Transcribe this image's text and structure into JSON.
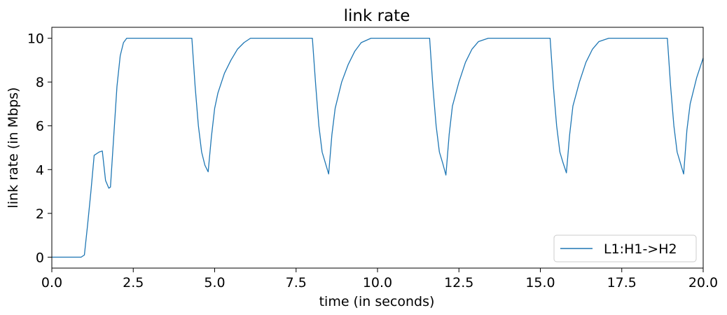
{
  "chart_data": {
    "type": "line",
    "title": "link rate",
    "xlabel": "time (in seconds)",
    "ylabel": "link rate (in Mbps)",
    "xlim": [
      0,
      20
    ],
    "ylim": [
      -0.5,
      10.5
    ],
    "xticks": [
      0.0,
      2.5,
      5.0,
      7.5,
      10.0,
      12.5,
      15.0,
      17.5,
      20.0
    ],
    "xtick_labels": [
      "0.0",
      "2.5",
      "5.0",
      "7.5",
      "10.0",
      "12.5",
      "15.0",
      "17.5",
      "20.0"
    ],
    "yticks": [
      0,
      2,
      4,
      6,
      8,
      10
    ],
    "ytick_labels": [
      "0",
      "2",
      "4",
      "6",
      "8",
      "10"
    ],
    "grid": false,
    "legend_position": "bottom-right",
    "color": "#1f77b4",
    "series": [
      {
        "name": "L1:H1->H2",
        "x": [
          0,
          0.9,
          1.0,
          1.1,
          1.2,
          1.3,
          1.45,
          1.55,
          1.65,
          1.75,
          1.8,
          1.9,
          2.0,
          2.1,
          2.2,
          2.3,
          2.4,
          2.5,
          2.7,
          4.3,
          4.4,
          4.5,
          4.6,
          4.7,
          4.8,
          4.9,
          5.0,
          5.1,
          5.3,
          5.5,
          5.7,
          5.9,
          6.1,
          6.4,
          8.0,
          8.1,
          8.2,
          8.3,
          8.4,
          8.5,
          8.6,
          8.7,
          8.9,
          9.1,
          9.3,
          9.5,
          9.8,
          10.1,
          11.6,
          11.7,
          11.8,
          11.9,
          12.0,
          12.1,
          12.2,
          12.3,
          12.5,
          12.7,
          12.9,
          13.1,
          13.4,
          13.7,
          15.3,
          15.4,
          15.5,
          15.6,
          15.7,
          15.8,
          15.9,
          16.0,
          16.2,
          16.4,
          16.6,
          16.8,
          17.1,
          17.4,
          18.9,
          19.0,
          19.1,
          19.2,
          19.3,
          19.4,
          19.5,
          19.6,
          19.8,
          20.0
        ],
        "y": [
          0,
          0,
          0.1,
          1.5,
          3.0,
          4.65,
          4.8,
          4.85,
          3.5,
          3.15,
          3.2,
          5.5,
          7.8,
          9.2,
          9.8,
          10.0,
          10.0,
          10.0,
          10.0,
          10.0,
          7.8,
          6.0,
          4.8,
          4.2,
          3.9,
          5.5,
          6.8,
          7.5,
          8.4,
          9.0,
          9.5,
          9.8,
          10.0,
          10.0,
          10.0,
          7.9,
          6.0,
          4.8,
          4.3,
          3.8,
          5.6,
          6.8,
          8.0,
          8.8,
          9.4,
          9.8,
          10.0,
          10.0,
          10.0,
          7.8,
          6.0,
          4.8,
          4.3,
          3.75,
          5.6,
          6.9,
          8.0,
          8.9,
          9.5,
          9.85,
          10.0,
          10.0,
          10.0,
          7.8,
          6.0,
          4.8,
          4.3,
          3.85,
          5.6,
          6.9,
          8.0,
          8.9,
          9.5,
          9.85,
          10.0,
          10.0,
          10.0,
          7.8,
          6.0,
          4.8,
          4.3,
          3.8,
          5.8,
          7.0,
          8.2,
          9.1
        ]
      }
    ]
  }
}
